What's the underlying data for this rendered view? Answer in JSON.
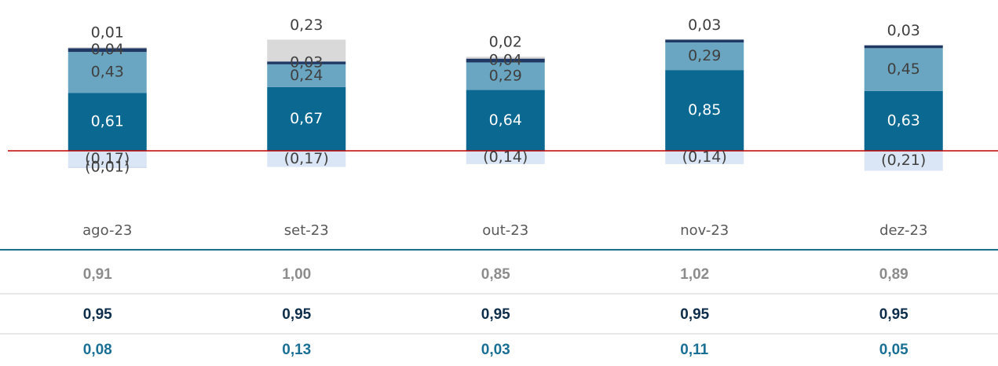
{
  "chart_data": {
    "type": "bar",
    "stacked": true,
    "categories": [
      "ago-23",
      "set-23",
      "out-23",
      "nov-23",
      "dez-23"
    ],
    "series": [
      {
        "color": "#0a6891",
        "values": [
          0.61,
          0.67,
          0.64,
          0.85,
          0.63
        ],
        "value_labels": [
          "0,61",
          "0,67",
          "0,64",
          "0,85",
          "0,63"
        ]
      },
      {
        "color": "#6aa6c1",
        "values": [
          0.43,
          0.24,
          0.29,
          0.29,
          0.45
        ],
        "value_labels": [
          "0,43",
          "0,24",
          "0,29",
          "0,29",
          "0,45"
        ]
      },
      {
        "color": "#1f3864",
        "values": [
          0.04,
          0.03,
          0.04,
          0.03,
          0.03
        ],
        "value_labels": [
          "0,04",
          "0,03",
          "0,04",
          "0,03",
          "0,03"
        ]
      },
      {
        "color": "#d9d9d9",
        "values": [
          0.01,
          0.23,
          0.02,
          null,
          null
        ],
        "value_labels": [
          "0,01",
          "0,23",
          "0,02",
          null,
          null
        ]
      },
      {
        "color": "#dae6f5",
        "values": [
          -0.17,
          -0.17,
          -0.14,
          -0.14,
          -0.21
        ],
        "value_labels": [
          "(0,17)",
          "(0,17)",
          "(0,14)",
          "(0,14)",
          "(0,21)"
        ]
      },
      {
        "color": "#c9d7ee",
        "values": [
          -0.01,
          null,
          null,
          null,
          null
        ],
        "value_labels": [
          "(0,01)",
          null,
          null,
          null,
          null
        ]
      }
    ],
    "zero_line_color": "#c00000"
  },
  "table": {
    "rows": [
      [
        "0,91",
        "1,00",
        "0,85",
        "1,02",
        "0,89"
      ],
      [
        "0,95",
        "0,95",
        "0,95",
        "0,95",
        "0,95"
      ],
      [
        "0,08",
        "0,13",
        "0,03",
        "0,11",
        "0,05"
      ]
    ],
    "row_colors": [
      "#8c8c8c",
      "#0d2d4a",
      "#1a6f94"
    ]
  }
}
